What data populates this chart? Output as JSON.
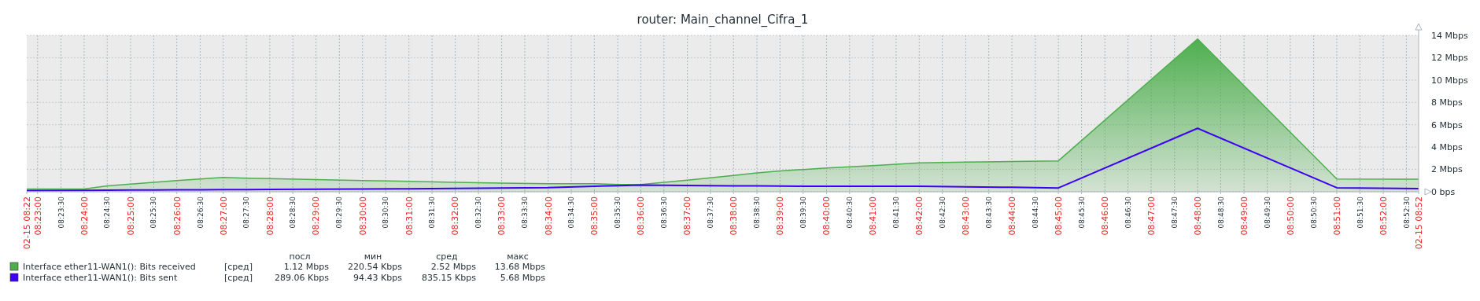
{
  "chart_data": {
    "type": "area",
    "title": "router: Main_channel_Cifra_1",
    "legend": "bottom",
    "grid": true,
    "x": [
      8.3794,
      8.4,
      8.4083,
      8.4167,
      8.425,
      8.4333,
      8.4417,
      8.45,
      8.4583,
      8.4667,
      8.4833,
      8.5,
      8.5167,
      8.5333,
      8.55,
      8.5667,
      8.5833,
      8.5917,
      8.6,
      8.6083,
      8.6167,
      8.625,
      8.6333,
      8.6417,
      8.65,
      8.6583,
      8.6667,
      8.675,
      8.6833,
      8.6917,
      8.7,
      8.7167,
      8.7333,
      8.75,
      8.8,
      8.85,
      8.8794
    ],
    "xlim": [
      8.3794,
      8.8794
    ],
    "ylim": [
      0,
      14
    ],
    "yticks": [
      {
        "value": 0,
        "label": "0 bps"
      },
      {
        "value": 2,
        "label": "2 Mbps"
      },
      {
        "value": 4,
        "label": "4 Mbps"
      },
      {
        "value": 6,
        "label": "6 Mbps"
      },
      {
        "value": 8,
        "label": "8 Mbps"
      },
      {
        "value": 10,
        "label": "10 Mbps"
      },
      {
        "value": 12,
        "label": "12 Mbps"
      },
      {
        "value": 14,
        "label": "14 Mbps"
      }
    ],
    "xticks": [
      {
        "value": 8.3794,
        "label": "02-15 08:22"
      },
      {
        "value": 8.3833,
        "label": "08:23:00"
      },
      {
        "value": 8.3917,
        "label": "08:23:30"
      },
      {
        "value": 8.4,
        "label": "08:24:00"
      },
      {
        "value": 8.4083,
        "label": "08:24:30"
      },
      {
        "value": 8.4167,
        "label": "08:25:00"
      },
      {
        "value": 8.425,
        "label": "08:25:30"
      },
      {
        "value": 8.4333,
        "label": "08:26:00"
      },
      {
        "value": 8.4417,
        "label": "08:26:30"
      },
      {
        "value": 8.45,
        "label": "08:27:00"
      },
      {
        "value": 8.4583,
        "label": "08:27:30"
      },
      {
        "value": 8.4667,
        "label": "08:28:00"
      },
      {
        "value": 8.475,
        "label": "08:28:30"
      },
      {
        "value": 8.4833,
        "label": "08:29:00"
      },
      {
        "value": 8.4917,
        "label": "08:29:30"
      },
      {
        "value": 8.5,
        "label": "08:30:00"
      },
      {
        "value": 8.5083,
        "label": "08:30:30"
      },
      {
        "value": 8.5167,
        "label": "08:31:00"
      },
      {
        "value": 8.525,
        "label": "08:31:30"
      },
      {
        "value": 8.5333,
        "label": "08:32:00"
      },
      {
        "value": 8.5417,
        "label": "08:32:30"
      },
      {
        "value": 8.55,
        "label": "08:33:00"
      },
      {
        "value": 8.5583,
        "label": "08:33:30"
      },
      {
        "value": 8.5667,
        "label": "08:34:00"
      },
      {
        "value": 8.575,
        "label": "08:34:30"
      },
      {
        "value": 8.5833,
        "label": "08:35:00"
      },
      {
        "value": 8.5917,
        "label": "08:35:30"
      },
      {
        "value": 8.6,
        "label": "08:36:00"
      },
      {
        "value": 8.6083,
        "label": "08:36:30"
      },
      {
        "value": 8.6167,
        "label": "08:37:00"
      },
      {
        "value": 8.625,
        "label": "08:37:30"
      },
      {
        "value": 8.6333,
        "label": "08:38:00"
      },
      {
        "value": 8.6417,
        "label": "08:38:30"
      },
      {
        "value": 8.65,
        "label": "08:39:00"
      },
      {
        "value": 8.6583,
        "label": "08:39:30"
      },
      {
        "value": 8.6667,
        "label": "08:40:00"
      },
      {
        "value": 8.675,
        "label": "08:40:30"
      },
      {
        "value": 8.6833,
        "label": "08:41:00"
      },
      {
        "value": 8.6917,
        "label": "08:41:30"
      },
      {
        "value": 8.7,
        "label": "08:42:00"
      },
      {
        "value": 8.7083,
        "label": "08:42:30"
      },
      {
        "value": 8.7167,
        "label": "08:43:00"
      },
      {
        "value": 8.725,
        "label": "08:43:30"
      },
      {
        "value": 8.7333,
        "label": "08:44:00"
      },
      {
        "value": 8.7417,
        "label": "08:44:30"
      },
      {
        "value": 8.75,
        "label": "08:45:00"
      },
      {
        "value": 8.7583,
        "label": "08:45:30"
      },
      {
        "value": 8.7667,
        "label": "08:46:00"
      },
      {
        "value": 8.775,
        "label": "08:46:30"
      },
      {
        "value": 8.7833,
        "label": "08:47:00"
      },
      {
        "value": 8.7917,
        "label": "08:47:30"
      },
      {
        "value": 8.8,
        "label": "08:48:00"
      },
      {
        "value": 8.8083,
        "label": "08:48:30"
      },
      {
        "value": 8.8167,
        "label": "08:49:00"
      },
      {
        "value": 8.825,
        "label": "08:49:30"
      },
      {
        "value": 8.8333,
        "label": "08:50:00"
      },
      {
        "value": 8.8417,
        "label": "08:50:30"
      },
      {
        "value": 8.85,
        "label": "08:51:00"
      },
      {
        "value": 8.8583,
        "label": "08:51:30"
      },
      {
        "value": 8.8667,
        "label": "08:52:00"
      },
      {
        "value": 8.875,
        "label": "08:52:30"
      },
      {
        "value": 8.8794,
        "label": "02-15 08:52"
      }
    ],
    "series": [
      {
        "name": "Interface ether11-WAN1(): Bits received",
        "color": "#4cae4c",
        "values": [
          0.25,
          0.25,
          0.53,
          0.69,
          0.84,
          1.0,
          1.15,
          1.28,
          1.21,
          1.18,
          1.09,
          1.0,
          0.93,
          0.84,
          0.78,
          0.72,
          0.72,
          0.65,
          0.65,
          0.84,
          1.03,
          1.25,
          1.46,
          1.68,
          1.87,
          1.99,
          2.12,
          2.24,
          2.34,
          2.46,
          2.59,
          2.65,
          2.71,
          2.77,
          13.68,
          1.15,
          1.12
        ]
      },
      {
        "name": "Interface ether11-WAN1(): Bits sent",
        "color": "#3d00f5",
        "type": "line",
        "values": [
          0.1,
          0.13,
          0.14,
          0.15,
          0.16,
          0.17,
          0.18,
          0.19,
          0.2,
          0.21,
          0.23,
          0.25,
          0.27,
          0.3,
          0.34,
          0.37,
          0.5,
          0.55,
          0.59,
          0.58,
          0.56,
          0.55,
          0.53,
          0.52,
          0.51,
          0.5,
          0.5,
          0.5,
          0.5,
          0.5,
          0.5,
          0.44,
          0.4,
          0.34,
          5.68,
          0.36,
          0.29
        ]
      }
    ],
    "annotations": [
      "посл",
      "мин",
      "сред",
      "макс",
      "[сред]",
      "1.12 Mbps",
      "220.54 Kbps",
      "2.52 Mbps",
      "13.68 Mbps",
      "[сред]",
      "289.06 Kbps",
      "94.43 Kbps",
      "835.15 Kbps",
      "5.68 Mbps"
    ]
  }
}
